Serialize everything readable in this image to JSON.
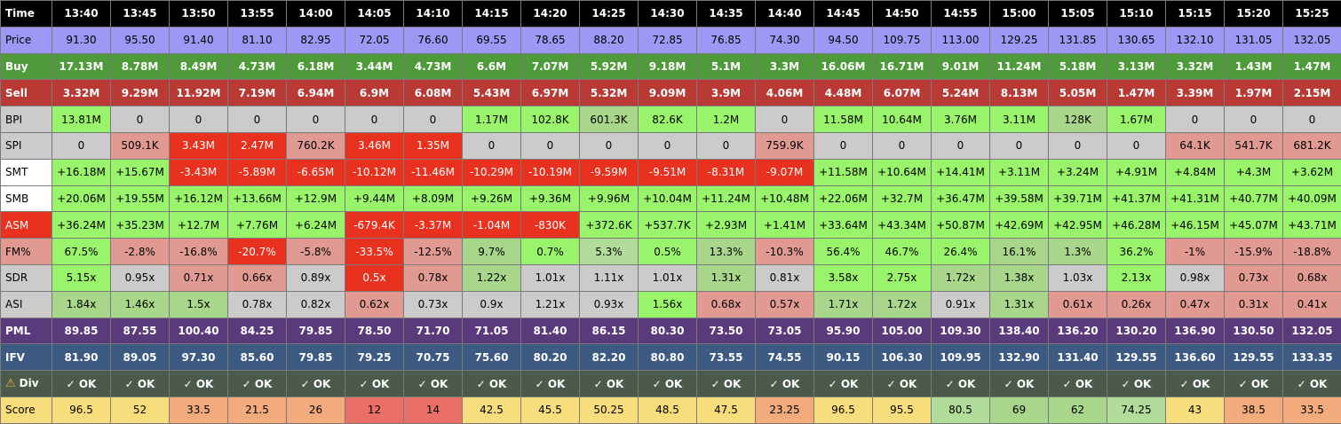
{
  "times": [
    "13:40",
    "13:45",
    "13:50",
    "13:55",
    "14:00",
    "14:05",
    "14:10",
    "14:15",
    "14:20",
    "14:25",
    "14:30",
    "14:35",
    "14:40",
    "14:45",
    "14:50",
    "14:55",
    "15:00",
    "15:05",
    "15:10",
    "15:15",
    "15:20",
    "15:25"
  ],
  "colors": {
    "red": "#e8321f",
    "green": "#99f36b",
    "mid_green": "#a8d68a",
    "light_green": "#b2dc9a",
    "pink": "#e09a92",
    "gray": "#cbcbcb",
    "white": "#ffffff",
    "score_yellow": "#f8dd7c",
    "score_orange": "#f2ab7c",
    "score_salmon": "#f28f74",
    "score_red": "#ea6f66"
  },
  "rows": [
    {
      "name": "time",
      "label": "Time",
      "label_bg": "#000000",
      "label_fg": "#ffffff",
      "row_bg": "#000000",
      "row_fg": "#ffffff",
      "bold": true,
      "values": [
        "13:40",
        "13:45",
        "13:50",
        "13:55",
        "14:00",
        "14:05",
        "14:10",
        "14:15",
        "14:20",
        "14:25",
        "14:30",
        "14:35",
        "14:40",
        "14:45",
        "14:50",
        "14:55",
        "15:00",
        "15:05",
        "15:10",
        "15:15",
        "15:20",
        "15:25"
      ]
    },
    {
      "name": "price",
      "label": "Price",
      "label_bg": "#9b99f4",
      "label_fg": "#000000",
      "row_bg": "#9b99f4",
      "row_fg": "#000000",
      "values": [
        "91.30",
        "95.50",
        "91.40",
        "81.10",
        "82.95",
        "72.05",
        "76.60",
        "69.55",
        "78.65",
        "88.20",
        "72.85",
        "76.85",
        "74.30",
        "94.50",
        "109.75",
        "113.00",
        "129.25",
        "131.85",
        "130.65",
        "132.10",
        "131.05",
        "132.05"
      ]
    },
    {
      "name": "buy",
      "label": "Buy",
      "label_bg": "#4f9a3a",
      "label_fg": "#ffffff",
      "row_bg": "#4f9a3a",
      "row_fg": "#ffffff",
      "bold": true,
      "values": [
        "17.13M",
        "8.78M",
        "8.49M",
        "4.73M",
        "6.18M",
        "3.44M",
        "4.73M",
        "6.6M",
        "7.07M",
        "5.92M",
        "9.18M",
        "5.1M",
        "3.3M",
        "16.06M",
        "16.71M",
        "9.01M",
        "11.24M",
        "5.18M",
        "3.13M",
        "3.32M",
        "1.43M",
        "1.47M"
      ]
    },
    {
      "name": "sell",
      "label": "Sell",
      "label_bg": "#b93a34",
      "label_fg": "#ffffff",
      "row_bg": "#b93a34",
      "row_fg": "#ffffff",
      "bold": true,
      "values": [
        "3.32M",
        "9.29M",
        "11.92M",
        "7.19M",
        "6.94M",
        "6.9M",
        "6.08M",
        "5.43M",
        "6.97M",
        "5.32M",
        "9.09M",
        "3.9M",
        "4.06M",
        "4.48M",
        "6.07M",
        "5.24M",
        "8.13M",
        "5.05M",
        "1.47M",
        "3.39M",
        "1.97M",
        "2.15M"
      ]
    },
    {
      "name": "bpi",
      "label": "BPI",
      "label_bg": "#cbcbcb",
      "label_fg": "#000000",
      "row_fg": "#000000",
      "values": [
        "13.81M",
        "0",
        "0",
        "0",
        "0",
        "0",
        "0",
        "1.17M",
        "102.8K",
        "601.3K",
        "82.6K",
        "1.2M",
        "0",
        "11.58M",
        "10.64M",
        "3.76M",
        "3.11M",
        "128K",
        "1.67M",
        "0",
        "0",
        "0"
      ],
      "bgs": [
        "green",
        "gray",
        "gray",
        "gray",
        "gray",
        "gray",
        "gray",
        "green",
        "green",
        "mid_green",
        "green",
        "green",
        "gray",
        "green",
        "green",
        "green",
        "green",
        "mid_green",
        "green",
        "gray",
        "gray",
        "gray"
      ]
    },
    {
      "name": "spi",
      "label": "SPI",
      "label_bg": "#cbcbcb",
      "label_fg": "#000000",
      "row_fg": "#000000",
      "values": [
        "0",
        "509.1K",
        "3.43M",
        "2.47M",
        "760.2K",
        "3.46M",
        "1.35M",
        "0",
        "0",
        "0",
        "0",
        "0",
        "759.9K",
        "0",
        "0",
        "0",
        "0",
        "0",
        "0",
        "64.1K",
        "541.7K",
        "681.2K"
      ],
      "bgs": [
        "gray",
        "pink",
        "red",
        "red",
        "pink",
        "red",
        "red",
        "gray",
        "gray",
        "gray",
        "gray",
        "gray",
        "pink",
        "gray",
        "gray",
        "gray",
        "gray",
        "gray",
        "gray",
        "pink",
        "pink",
        "pink"
      ],
      "fgs": [
        "#000000",
        "#000000",
        "#ffffff",
        "#ffffff",
        "#000000",
        "#ffffff",
        "#ffffff",
        "#000000",
        "#000000",
        "#000000",
        "#000000",
        "#000000",
        "#000000",
        "#000000",
        "#000000",
        "#000000",
        "#000000",
        "#000000",
        "#000000",
        "#000000",
        "#000000",
        "#000000"
      ]
    },
    {
      "name": "smt",
      "label": "SMT",
      "label_bg": "#ffffff",
      "label_fg": "#000000",
      "row_fg": "#000000",
      "values": [
        "+16.18M",
        "+15.67M",
        "-3.43M",
        "-5.89M",
        "-6.65M",
        "-10.12M",
        "-11.46M",
        "-10.29M",
        "-10.19M",
        "-9.59M",
        "-9.51M",
        "-8.31M",
        "-9.07M",
        "+11.58M",
        "+10.64M",
        "+14.41M",
        "+3.11M",
        "+3.24M",
        "+4.91M",
        "+4.84M",
        "+4.3M",
        "+3.62M"
      ],
      "bgs": [
        "green",
        "green",
        "red",
        "red",
        "red",
        "red",
        "red",
        "red",
        "red",
        "red",
        "red",
        "red",
        "red",
        "green",
        "green",
        "green",
        "green",
        "green",
        "green",
        "green",
        "green",
        "green"
      ],
      "fgs": [
        "#000000",
        "#000000",
        "#ffffff",
        "#ffffff",
        "#ffffff",
        "#ffffff",
        "#ffffff",
        "#ffffff",
        "#ffffff",
        "#ffffff",
        "#ffffff",
        "#ffffff",
        "#ffffff",
        "#000000",
        "#000000",
        "#000000",
        "#000000",
        "#000000",
        "#000000",
        "#000000",
        "#000000",
        "#000000"
      ]
    },
    {
      "name": "smb",
      "label": "SMB",
      "label_bg": "#ffffff",
      "label_fg": "#000000",
      "row_fg": "#000000",
      "values": [
        "+20.06M",
        "+19.55M",
        "+16.12M",
        "+13.66M",
        "+12.9M",
        "+9.44M",
        "+8.09M",
        "+9.26M",
        "+9.36M",
        "+9.96M",
        "+10.04M",
        "+11.24M",
        "+10.48M",
        "+22.06M",
        "+32.7M",
        "+36.47M",
        "+39.58M",
        "+39.71M",
        "+41.37M",
        "+41.31M",
        "+40.77M",
        "+40.09M"
      ],
      "bgs": [
        "green",
        "green",
        "green",
        "green",
        "green",
        "green",
        "green",
        "green",
        "green",
        "green",
        "green",
        "green",
        "green",
        "green",
        "green",
        "green",
        "green",
        "green",
        "green",
        "green",
        "green",
        "green"
      ]
    },
    {
      "name": "asm",
      "label": "ASM",
      "label_bg": "#e8321f",
      "label_fg": "#ffffff",
      "row_fg": "#000000",
      "values": [
        "+36.24M",
        "+35.23M",
        "+12.7M",
        "+7.76M",
        "+6.24M",
        "-679.4K",
        "-3.37M",
        "-1.04M",
        "-830K",
        "+372.6K",
        "+537.7K",
        "+2.93M",
        "+1.41M",
        "+33.64M",
        "+43.34M",
        "+50.87M",
        "+42.69M",
        "+42.95M",
        "+46.28M",
        "+46.15M",
        "+45.07M",
        "+43.71M"
      ],
      "bgs": [
        "green",
        "green",
        "green",
        "green",
        "green",
        "red",
        "red",
        "red",
        "red",
        "green",
        "green",
        "green",
        "green",
        "green",
        "green",
        "green",
        "green",
        "green",
        "green",
        "green",
        "green",
        "green"
      ],
      "fgs": [
        "#000000",
        "#000000",
        "#000000",
        "#000000",
        "#000000",
        "#ffffff",
        "#ffffff",
        "#ffffff",
        "#ffffff",
        "#000000",
        "#000000",
        "#000000",
        "#000000",
        "#000000",
        "#000000",
        "#000000",
        "#000000",
        "#000000",
        "#000000",
        "#000000",
        "#000000",
        "#000000"
      ]
    },
    {
      "name": "fm",
      "label": "FM%",
      "label_bg": "#e09a92",
      "label_fg": "#000000",
      "row_fg": "#000000",
      "values": [
        "67.5%",
        "-2.8%",
        "-16.8%",
        "-20.7%",
        "-5.8%",
        "-33.5%",
        "-12.5%",
        "9.7%",
        "0.7%",
        "5.3%",
        "0.5%",
        "13.3%",
        "-10.3%",
        "56.4%",
        "46.7%",
        "26.4%",
        "16.1%",
        "1.3%",
        "36.2%",
        "-1%",
        "-15.9%",
        "-18.8%"
      ],
      "bgs": [
        "green",
        "pink",
        "pink",
        "red",
        "pink",
        "red",
        "pink",
        "mid_green",
        "green",
        "light_green",
        "green",
        "mid_green",
        "pink",
        "green",
        "green",
        "green",
        "mid_green",
        "mid_green",
        "green",
        "pink",
        "pink",
        "pink"
      ],
      "fgs": [
        "#000000",
        "#000000",
        "#000000",
        "#ffffff",
        "#000000",
        "#ffffff",
        "#000000",
        "#000000",
        "#000000",
        "#000000",
        "#000000",
        "#000000",
        "#000000",
        "#000000",
        "#000000",
        "#000000",
        "#000000",
        "#000000",
        "#000000",
        "#000000",
        "#000000",
        "#000000"
      ]
    },
    {
      "name": "sdr",
      "label": "SDR",
      "label_bg": "#cbcbcb",
      "label_fg": "#000000",
      "row_fg": "#000000",
      "values": [
        "5.15x",
        "0.95x",
        "0.71x",
        "0.66x",
        "0.89x",
        "0.5x",
        "0.78x",
        "1.22x",
        "1.01x",
        "1.11x",
        "1.01x",
        "1.31x",
        "0.81x",
        "3.58x",
        "2.75x",
        "1.72x",
        "1.38x",
        "1.03x",
        "2.13x",
        "0.98x",
        "0.73x",
        "0.68x"
      ],
      "bgs": [
        "green",
        "gray",
        "pink",
        "pink",
        "gray",
        "red",
        "pink",
        "mid_green",
        "gray",
        "gray",
        "gray",
        "mid_green",
        "gray",
        "green",
        "green",
        "mid_green",
        "mid_green",
        "gray",
        "green",
        "gray",
        "pink",
        "pink"
      ],
      "fgs": [
        "#000000",
        "#000000",
        "#000000",
        "#000000",
        "#000000",
        "#ffffff",
        "#000000",
        "#000000",
        "#000000",
        "#000000",
        "#000000",
        "#000000",
        "#000000",
        "#000000",
        "#000000",
        "#000000",
        "#000000",
        "#000000",
        "#000000",
        "#000000",
        "#000000",
        "#000000"
      ]
    },
    {
      "name": "asi",
      "label": "ASI",
      "label_bg": "#cbcbcb",
      "label_fg": "#000000",
      "row_fg": "#000000",
      "values": [
        "1.84x",
        "1.46x",
        "1.5x",
        "0.78x",
        "0.82x",
        "0.62x",
        "0.73x",
        "0.9x",
        "1.21x",
        "0.93x",
        "1.56x",
        "0.68x",
        "0.57x",
        "1.71x",
        "1.72x",
        "0.91x",
        "1.31x",
        "0.61x",
        "0.26x",
        "0.47x",
        "0.31x",
        "0.41x"
      ],
      "bgs": [
        "mid_green",
        "mid_green",
        "mid_green",
        "gray",
        "gray",
        "pink",
        "gray",
        "gray",
        "gray",
        "gray",
        "green",
        "pink",
        "pink",
        "mid_green",
        "mid_green",
        "gray",
        "mid_green",
        "pink",
        "pink",
        "pink",
        "pink",
        "pink"
      ]
    },
    {
      "name": "pml",
      "label": "PML",
      "label_bg": "#5b3a7c",
      "label_fg": "#ffffff",
      "row_bg": "#5b3a7c",
      "row_fg": "#ffffff",
      "bold": true,
      "values": [
        "89.85",
        "87.55",
        "100.40",
        "84.25",
        "79.85",
        "78.50",
        "71.70",
        "71.05",
        "81.40",
        "86.15",
        "80.30",
        "73.50",
        "73.05",
        "95.90",
        "105.00",
        "109.30",
        "138.40",
        "136.20",
        "130.20",
        "136.90",
        "130.50",
        "132.05"
      ]
    },
    {
      "name": "ifv",
      "label": "IFV",
      "label_bg": "#3d5a83",
      "label_fg": "#ffffff",
      "row_bg": "#3d5a83",
      "row_fg": "#ffffff",
      "bold": true,
      "values": [
        "81.90",
        "89.05",
        "97.30",
        "85.60",
        "79.85",
        "79.25",
        "70.75",
        "75.60",
        "80.20",
        "82.20",
        "80.80",
        "73.55",
        "74.55",
        "90.15",
        "106.30",
        "109.95",
        "132.90",
        "131.40",
        "129.55",
        "136.60",
        "129.55",
        "133.35"
      ]
    },
    {
      "name": "div",
      "label": "Div",
      "label_bg": "#4b5a4b",
      "label_fg": "#ffffff",
      "row_bg": "#4b5a4b",
      "row_fg": "#ffffff",
      "bold": true,
      "warn_icon": "warning-icon",
      "values": [
        "✓ OK",
        "✓ OK",
        "✓ OK",
        "✓ OK",
        "✓ OK",
        "✓ OK",
        "✓ OK",
        "✓ OK",
        "✓ OK",
        "✓ OK",
        "✓ OK",
        "✓ OK",
        "✓ OK",
        "✓ OK",
        "✓ OK",
        "✓ OK",
        "✓ OK",
        "✓ OK",
        "✓ OK",
        "✓ OK",
        "✓ OK",
        "✓ OK"
      ]
    },
    {
      "name": "score",
      "label": "Score",
      "label_bg": "#f8dd7c",
      "label_fg": "#000000",
      "row_fg": "#000000",
      "values": [
        "96.5",
        "52",
        "33.5",
        "21.5",
        "26",
        "12",
        "14",
        "42.5",
        "45.5",
        "50.25",
        "48.5",
        "47.5",
        "23.25",
        "96.5",
        "95.5",
        "80.5",
        "69",
        "62",
        "74.25",
        "43",
        "38.5",
        "33.5"
      ],
      "bgs": [
        "score_yellow",
        "score_yellow",
        "score_orange",
        "score_orange",
        "score_orange",
        "score_red",
        "score_red",
        "score_yellow",
        "score_yellow",
        "score_yellow",
        "score_yellow",
        "score_yellow",
        "score_orange",
        "score_yellow",
        "score_yellow",
        "light_green",
        "mid_green",
        "mid_green",
        "light_green",
        "score_yellow",
        "score_orange",
        "score_orange"
      ]
    }
  ]
}
